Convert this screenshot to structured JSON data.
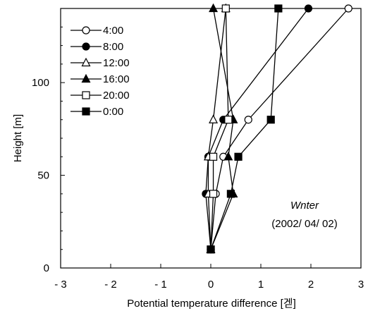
{
  "chart_data": {
    "type": "line",
    "xlabel": "Potential temperature difference [",
    "xlabel_unit": "겓",
    "ylabel": "Height [m]",
    "xlim": [
      -3,
      3
    ],
    "ylim": [
      0,
      140
    ],
    "x_ticks": [
      -3,
      -2,
      -1,
      0,
      1,
      2,
      3
    ],
    "x_tick_labels": [
      "- 3",
      "- 2",
      "- 1",
      "0",
      "1",
      "2",
      "3"
    ],
    "y_ticks": [
      0,
      50,
      100
    ],
    "y_tick_labels": [
      "0",
      "50",
      "100"
    ],
    "grid": false,
    "legend_position": "top-left",
    "annotation_line1": "Wnter",
    "annotation_line2": "(2002/ 04/ 02)",
    "series": [
      {
        "name": "4:00",
        "marker": "circle",
        "filled": false,
        "points": [
          [
            0,
            10
          ],
          [
            0.1,
            40
          ],
          [
            0.25,
            60
          ],
          [
            0.75,
            80
          ],
          [
            2.75,
            140
          ]
        ]
      },
      {
        "name": "8:00",
        "marker": "circle",
        "filled": true,
        "points": [
          [
            0,
            10
          ],
          [
            -0.1,
            40
          ],
          [
            -0.05,
            60
          ],
          [
            0.25,
            80
          ],
          [
            1.95,
            140
          ]
        ]
      },
      {
        "name": "12:00",
        "marker": "triangle",
        "filled": false,
        "points": [
          [
            0,
            10
          ],
          [
            -0.05,
            40
          ],
          [
            -0.05,
            60
          ],
          [
            0.05,
            80
          ],
          [
            0.3,
            140
          ]
        ]
      },
      {
        "name": "16:00",
        "marker": "triangle",
        "filled": true,
        "points": [
          [
            0,
            10
          ],
          [
            0.45,
            40
          ],
          [
            0.35,
            60
          ],
          [
            0.45,
            80
          ],
          [
            0.05,
            140
          ]
        ]
      },
      {
        "name": "20:00",
        "marker": "square",
        "filled": false,
        "points": [
          [
            0,
            10
          ],
          [
            0.05,
            40
          ],
          [
            0.05,
            60
          ],
          [
            0.35,
            80
          ],
          [
            0.3,
            140
          ]
        ]
      },
      {
        "name": "0:00",
        "marker": "square",
        "filled": true,
        "points": [
          [
            0,
            10
          ],
          [
            0.4,
            40
          ],
          [
            0.55,
            60
          ],
          [
            1.2,
            80
          ],
          [
            1.35,
            140
          ]
        ]
      }
    ]
  }
}
